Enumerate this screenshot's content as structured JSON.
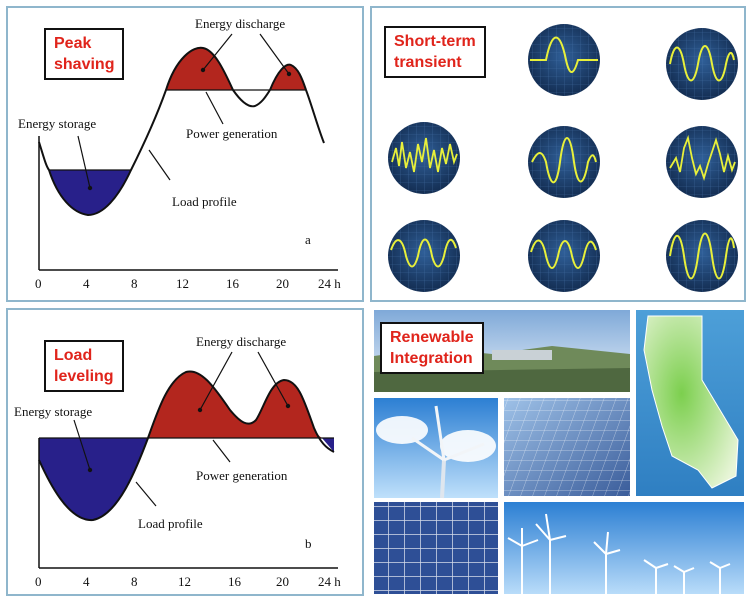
{
  "panel_a": {
    "tag_lines": [
      "Peak",
      "shaving"
    ],
    "labels": {
      "energy_discharge": "Energy discharge",
      "energy_storage": "Energy storage",
      "power_generation": "Power generation",
      "load_profile": "Load profile",
      "letter": "a"
    },
    "x_ticks": [
      "0",
      "4",
      "8",
      "12",
      "16",
      "20",
      "24 h"
    ]
  },
  "panel_b": {
    "tag_lines": [
      "Load",
      "leveling"
    ],
    "labels": {
      "energy_discharge": "Energy discharge",
      "energy_storage": "Energy storage",
      "power_generation": "Power generation",
      "load_profile": "Load profile",
      "letter": "b"
    },
    "x_ticks": [
      "0",
      "4",
      "8",
      "12",
      "16",
      "20",
      "24 h"
    ]
  },
  "panel_c": {
    "tag_lines": [
      "Short-term",
      "transient"
    ],
    "scopes": [
      "oscilloscope-step",
      "oscilloscope-sine",
      "oscilloscope-noisy",
      "oscilloscope-burst",
      "oscilloscope-spiky",
      "oscilloscope-wave",
      "oscilloscope-wave",
      "oscilloscope-deep"
    ]
  },
  "panel_d": {
    "tag_lines": [
      "Renewable",
      "Integration"
    ],
    "photos": [
      "landscape-photo",
      "wind-turbine-photo",
      "solar-panel-photo",
      "california-map",
      "solar-array-photo",
      "wind-farm-photo"
    ]
  },
  "colors": {
    "storage": "#28208a",
    "discharge": "#b3261e",
    "tag_text": "#e0241b",
    "panel_border": "#8fb6cc",
    "scope_bg": "#1d3f6e",
    "scope_trace": "#e8f03a"
  }
}
